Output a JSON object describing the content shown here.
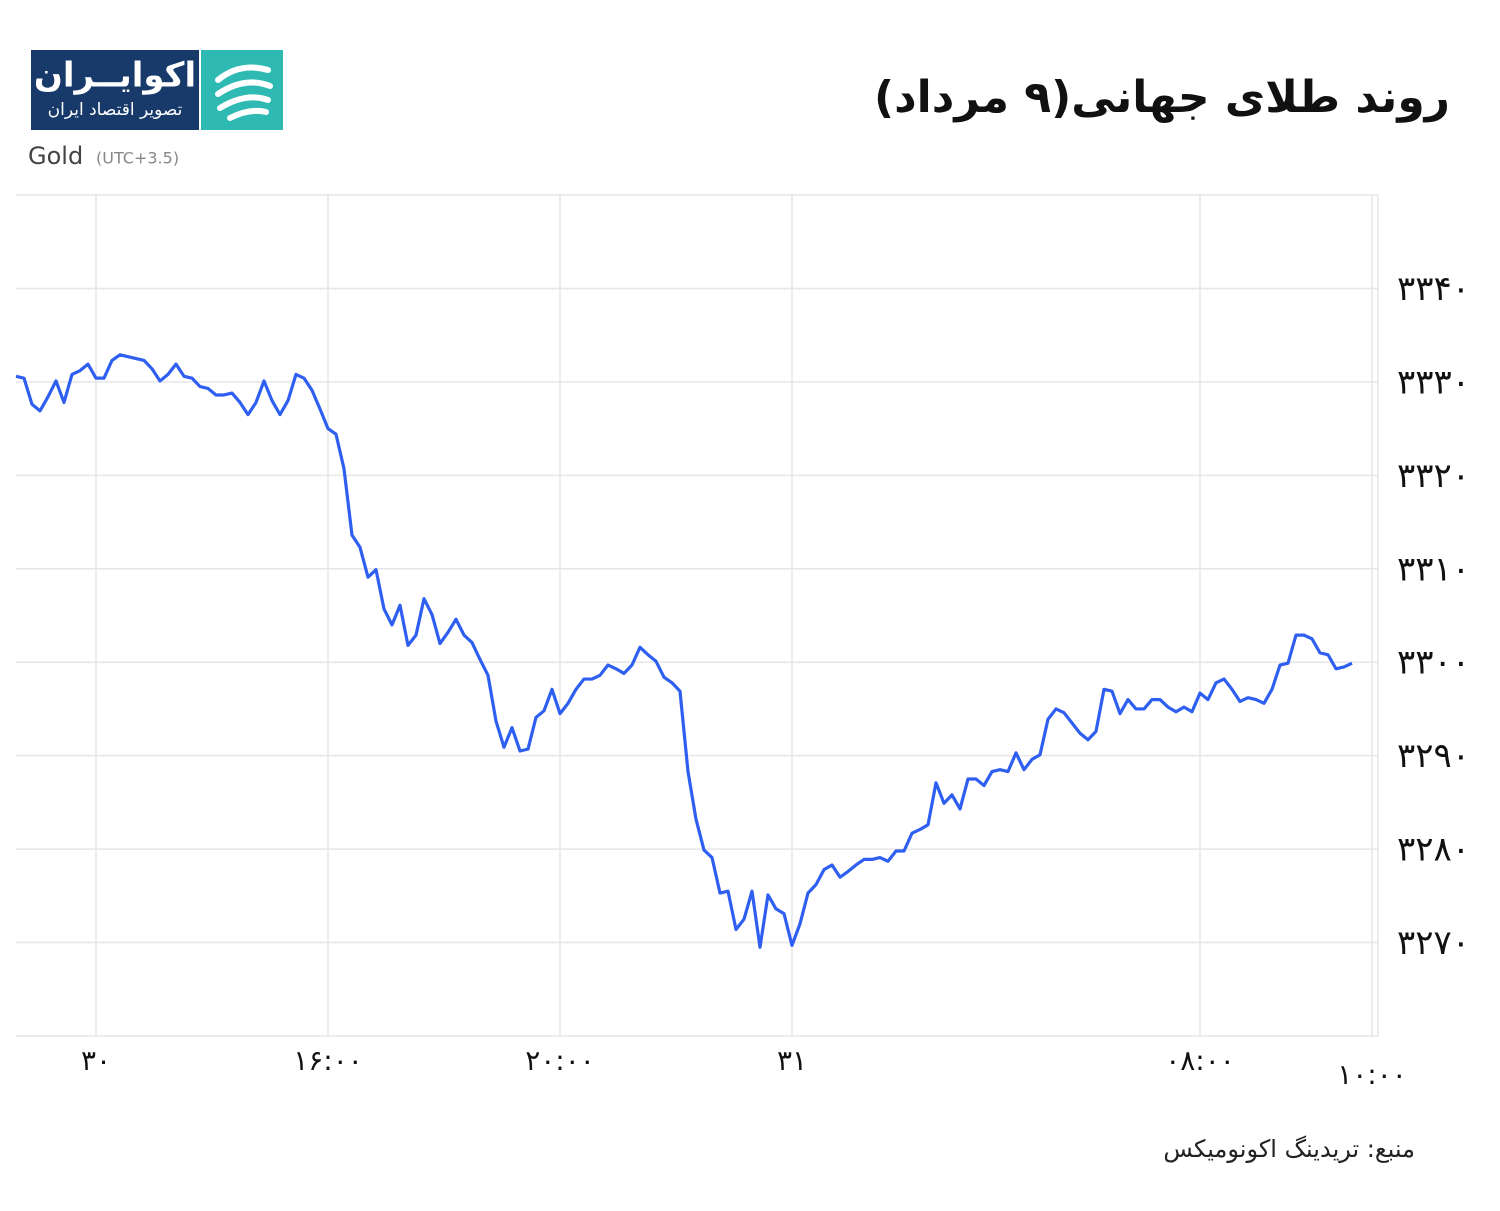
{
  "logo": {
    "name": "اکوایــران",
    "tagline": "تصویر اقتصاد ایران"
  },
  "chart_data": {
    "type": "line",
    "title": "روند طلای جهانی(۹ مرداد)",
    "subtitle": "Gold",
    "timezone": "(UTC+3.5)",
    "source": "منبع: تریدینگ اکونومیکس",
    "grid": true,
    "xlim": [
      0,
      170.25
    ],
    "xticks": [
      {
        "value": 10,
        "label": "۳۰"
      },
      {
        "value": 39,
        "label": "۱۶:۰۰"
      },
      {
        "value": 68,
        "label": "۲۰:۰۰"
      },
      {
        "value": 97,
        "label": "۳۱"
      },
      {
        "value": 148,
        "label": "۰۸:۰۰"
      },
      {
        "value": 169.5,
        "label": "۱۰:۰۰"
      }
    ],
    "ylim": [
      3260,
      3350
    ],
    "yticks": [
      {
        "value": 3270,
        "label": "۳۲۷۰"
      },
      {
        "value": 3280,
        "label": "۳۲۸۰"
      },
      {
        "value": 3290,
        "label": "۳۲۹۰"
      },
      {
        "value": 3300,
        "label": "۳۳۰۰"
      },
      {
        "value": 3310,
        "label": "۳۳۱۰"
      },
      {
        "value": 3320,
        "label": "۳۳۲۰"
      },
      {
        "value": 3330,
        "label": "۳۳۳۰"
      },
      {
        "value": 3340,
        "label": "۳۳۴۰"
      }
    ],
    "series": [
      {
        "name": "Gold",
        "color": "#2f5ff0",
        "values": [
          3330.6,
          3330.4,
          3327.6,
          3326.9,
          3328.4,
          3330.1,
          3327.8,
          3330.8,
          3331.2,
          3331.9,
          3330.4,
          3330.4,
          3332.3,
          3332.9,
          3332.7,
          3332.5,
          3332.3,
          3331.4,
          3330.1,
          3330.8,
          3331.9,
          3330.6,
          3330.4,
          3329.5,
          3329.3,
          3328.6,
          3328.6,
          3328.8,
          3327.8,
          3326.5,
          3327.8,
          3330.1,
          3328.0,
          3326.5,
          3328.0,
          3330.8,
          3330.4,
          3329.1,
          3327.1,
          3325.0,
          3324.4,
          3320.7,
          3313.6,
          3312.3,
          3309.1,
          3309.9,
          3305.7,
          3304.0,
          3306.1,
          3301.8,
          3302.9,
          3306.8,
          3305.1,
          3302.0,
          3303.2,
          3304.6,
          3302.9,
          3302.1,
          3300.3,
          3298.6,
          3293.7,
          3290.9,
          3293.0,
          3290.5,
          3290.7,
          3294.1,
          3294.8,
          3297.1,
          3294.5,
          3295.6,
          3297.1,
          3298.2,
          3298.2,
          3298.6,
          3299.7,
          3299.3,
          3298.8,
          3299.7,
          3301.6,
          3300.8,
          3300.1,
          3298.4,
          3297.8,
          3296.9,
          3288.3,
          3283.2,
          3279.9,
          3279.1,
          3275.3,
          3275.5,
          3271.4,
          3272.5,
          3275.5,
          3269.5,
          3275.1,
          3273.6,
          3273.1,
          3269.7,
          3272.0,
          3275.3,
          3276.2,
          3277.8,
          3278.3,
          3277.0,
          3277.6,
          3278.3,
          3278.9,
          3278.9,
          3279.1,
          3278.7,
          3279.8,
          3279.8,
          3281.7,
          3282.1,
          3282.6,
          3287.1,
          3284.9,
          3285.8,
          3284.3,
          3287.5,
          3287.5,
          3286.8,
          3288.3,
          3288.5,
          3288.3,
          3290.3,
          3288.5,
          3289.6,
          3290.1,
          3293.9,
          3295.0,
          3294.6,
          3293.5,
          3292.4,
          3291.7,
          3292.6,
          3297.1,
          3296.9,
          3294.5,
          3296.0,
          3295.0,
          3295.0,
          3296.0,
          3296.0,
          3295.2,
          3294.7,
          3295.2,
          3294.7,
          3296.7,
          3296.0,
          3297.8,
          3298.2,
          3297.1,
          3295.8,
          3296.2,
          3296.0,
          3295.6,
          3297.1,
          3299.7,
          3299.9,
          3302.9,
          3302.9,
          3302.5,
          3301.0,
          3300.8,
          3299.3,
          3299.5,
          3299.9
        ]
      }
    ]
  }
}
